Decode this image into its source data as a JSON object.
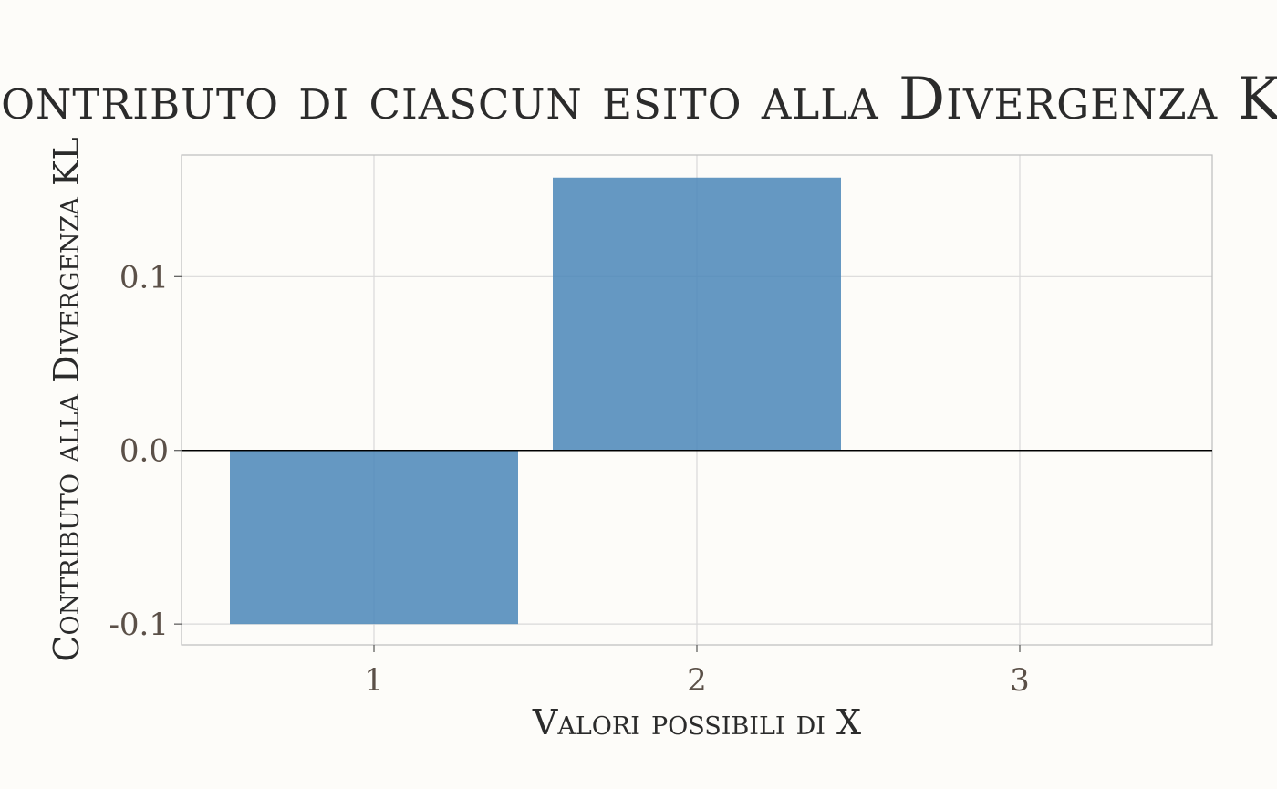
{
  "chart_data": {
    "type": "bar",
    "title": "Contributo di ciascun esito alla Divergenza KL",
    "xlabel": "Valori possibili di X",
    "ylabel": "Contributo alla Divergenza KL",
    "categories": [
      "1",
      "2",
      "3"
    ],
    "values": [
      -0.1,
      0.157,
      0.0
    ],
    "ylim": [
      -0.112,
      0.17
    ],
    "yticks": [
      -0.1,
      0.0,
      0.1
    ],
    "ytick_labels": [
      "-0.1",
      "0.0",
      "0.1"
    ],
    "grid": true,
    "legend": "none",
    "bar_color": "#4a86b8",
    "reference_line": {
      "y": 0,
      "color": "#000000"
    }
  }
}
